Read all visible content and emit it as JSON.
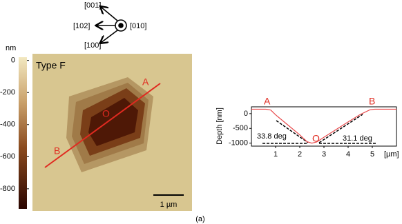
{
  "orientation": {
    "labels": [
      "[001]",
      "[102]",
      "[100]",
      "[010]"
    ]
  },
  "afm_image": {
    "title": "Type F",
    "unit": "nm",
    "colorbar_lim": [
      20,
      -925
    ],
    "colorbar_ticks": [
      0,
      -200,
      -400,
      -600,
      -800
    ],
    "points": [
      "A",
      "O",
      "B"
    ],
    "scale_bar": "1 µm"
  },
  "panel_label": "(a)",
  "chart_data": {
    "type": "line",
    "y_label": "Depth [nm]",
    "x_unit": "[µm]",
    "x": [
      0,
      0.6,
      0.8,
      1.0,
      1.5,
      2.0,
      2.3,
      2.5,
      2.7,
      3.0,
      3.5,
      4.0,
      4.5,
      4.9,
      5.1,
      6
    ],
    "series": [
      {
        "color": "#e8484a",
        "values": [
          150,
          150,
          120,
          -40,
          -380,
          -720,
          -950,
          -1000,
          -960,
          -800,
          -540,
          -280,
          -30,
          130,
          150,
          150
        ]
      }
    ],
    "xlim": [
      0,
      6
    ],
    "xticks": [
      1,
      2,
      3,
      4,
      5
    ],
    "ylim": [
      -1100,
      230
    ],
    "yticks": [
      0,
      -500,
      -1000
    ],
    "annotations": [
      "A",
      "O",
      "B",
      "33.8 deg",
      "31.1 deg"
    ]
  }
}
